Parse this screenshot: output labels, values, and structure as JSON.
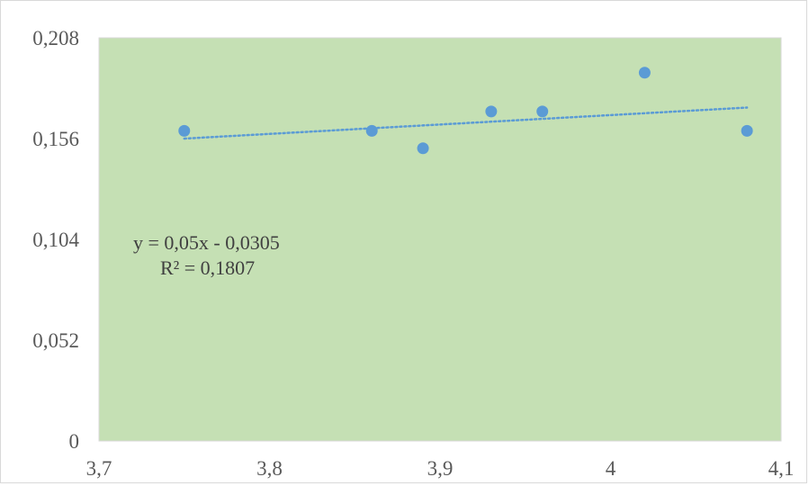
{
  "chart_data": {
    "type": "scatter",
    "title": "",
    "xlabel": "",
    "ylabel": "",
    "xlim": [
      3.7,
      4.1
    ],
    "ylim": [
      0,
      0.208
    ],
    "x_ticks": [
      "3,7",
      "3,8",
      "3,9",
      "4",
      "4,1"
    ],
    "x_tick_values": [
      3.7,
      3.8,
      3.9,
      4.0,
      4.1
    ],
    "y_ticks": [
      "0",
      "0,052",
      "0,104",
      "0,156",
      "0,208"
    ],
    "y_tick_values": [
      0,
      0.052,
      0.104,
      0.156,
      0.208
    ],
    "grid": false,
    "plot_area_color": "#c5e0b4",
    "series": [
      {
        "color": "#5b9bd5",
        "points": [
          {
            "x": 3.75,
            "y": 0.16
          },
          {
            "x": 3.86,
            "y": 0.16
          },
          {
            "x": 3.89,
            "y": 0.151
          },
          {
            "x": 3.93,
            "y": 0.17
          },
          {
            "x": 3.96,
            "y": 0.17
          },
          {
            "x": 4.02,
            "y": 0.19
          },
          {
            "x": 4.08,
            "y": 0.16
          }
        ]
      }
    ],
    "trendline": {
      "type": "linear",
      "style": "dotted",
      "color": "#5b9bd5",
      "x_start": 3.75,
      "x_end": 4.08,
      "y_start": 0.156,
      "y_end": 0.172,
      "equation": "y = 0,05x  - 0,0305",
      "r_squared": "R² = 0,1807"
    }
  }
}
